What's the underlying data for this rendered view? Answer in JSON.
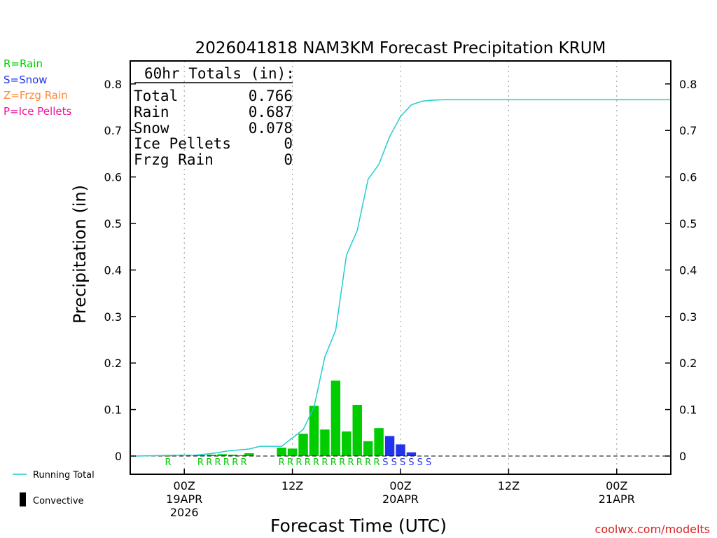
{
  "colors": {
    "rain": "#00cc00",
    "snow": "#2233ee",
    "frzg_rain": "#ff8833",
    "ice_pellets": "#ee1199",
    "running_total": "#22cccc",
    "watermark": "#dd2222"
  },
  "legend": {
    "type_entries": [
      {
        "text": "R=Rain",
        "color_key": "rain"
      },
      {
        "text": "S=Snow",
        "color_key": "snow"
      },
      {
        "text": "Z=Frzg Rain",
        "color_key": "frzg_rain"
      },
      {
        "text": "P=Ice Pellets",
        "color_key": "ice_pellets"
      }
    ],
    "running_total_label": "Running Total",
    "convective_label": "Convective"
  },
  "totals_box": {
    "heading": "60hr Totals (in):",
    "rows": [
      {
        "label": "Total",
        "value": "0.766"
      },
      {
        "label": "Rain",
        "value": "0.687"
      },
      {
        "label": "Snow",
        "value": "0.078"
      },
      {
        "label": "Ice Pellets",
        "value": "0"
      },
      {
        "label": "Frzg Rain",
        "value": "0"
      }
    ]
  },
  "watermark": "coolwx.com/modelts",
  "chart_data": {
    "type": "bar",
    "title": "2026041818 NAM3KM Forecast Precipitation KRUM",
    "xlabel": "Forecast Time (UTC)",
    "ylabel": "Precipitation (in)",
    "ylim": [
      0,
      0.85
    ],
    "xlim_hours_from_00Z_19APR": [
      -5,
      45
    ],
    "y_ticks": [
      "0",
      "0.1",
      "0.2",
      "0.3",
      "0.4",
      "0.5",
      "0.6",
      "0.7",
      "0.8"
    ],
    "x_ticks": [
      {
        "hour": 0,
        "lines": [
          "00Z",
          "19APR",
          "2026"
        ]
      },
      {
        "hour": 10,
        "lines": [
          "12Z"
        ]
      },
      {
        "hour": 20,
        "lines": [
          "00Z",
          "20APR"
        ]
      },
      {
        "hour": 30,
        "lines": [
          "12Z"
        ]
      },
      {
        "hour": 40,
        "lines": [
          "00Z",
          "21APR"
        ]
      }
    ],
    "grid": "vertical dotted at x ticks",
    "bar_series": {
      "name": "Hourly precipitation",
      "bars": [
        {
          "hour": -1.5,
          "value": 0.001,
          "type": "R"
        },
        {
          "hour": 1.5,
          "value": 0.002,
          "type": "R"
        },
        {
          "hour": 2.5,
          "value": 0.003,
          "type": "R"
        },
        {
          "hour": 3.5,
          "value": 0.004,
          "type": "R"
        },
        {
          "hour": 4.5,
          "value": 0.003,
          "type": "R"
        },
        {
          "hour": 5.5,
          "value": 0.002,
          "type": "R"
        },
        {
          "hour": 6.0,
          "value": 0.006,
          "type": "R"
        },
        {
          "hour": 9.0,
          "value": 0.018,
          "type": "R"
        },
        {
          "hour": 10.0,
          "value": 0.016,
          "type": "R"
        },
        {
          "hour": 11.0,
          "value": 0.048,
          "type": "R"
        },
        {
          "hour": 12.0,
          "value": 0.108,
          "type": "R"
        },
        {
          "hour": 13.0,
          "value": 0.057,
          "type": "R"
        },
        {
          "hour": 14.0,
          "value": 0.162,
          "type": "R"
        },
        {
          "hour": 15.0,
          "value": 0.053,
          "type": "R"
        },
        {
          "hour": 16.0,
          "value": 0.11,
          "type": "R"
        },
        {
          "hour": 17.0,
          "value": 0.032,
          "type": "R"
        },
        {
          "hour": 18.0,
          "value": 0.06,
          "type": "R"
        },
        {
          "hour": 19.0,
          "value": 0.043,
          "type": "S"
        },
        {
          "hour": 20.0,
          "value": 0.025,
          "type": "S"
        },
        {
          "hour": 21.0,
          "value": 0.008,
          "type": "S"
        }
      ]
    },
    "type_markers": [
      {
        "hour": -1.5,
        "type": "R"
      },
      {
        "hour": 1.5,
        "type": "R"
      },
      {
        "hour": 2.3,
        "type": "R"
      },
      {
        "hour": 3.1,
        "type": "R"
      },
      {
        "hour": 3.9,
        "type": "R"
      },
      {
        "hour": 4.7,
        "type": "R"
      },
      {
        "hour": 5.5,
        "type": "R"
      },
      {
        "hour": 9.0,
        "type": "R"
      },
      {
        "hour": 9.8,
        "type": "R"
      },
      {
        "hour": 10.6,
        "type": "R"
      },
      {
        "hour": 11.4,
        "type": "R"
      },
      {
        "hour": 12.2,
        "type": "R"
      },
      {
        "hour": 13.0,
        "type": "R"
      },
      {
        "hour": 13.8,
        "type": "R"
      },
      {
        "hour": 14.6,
        "type": "R"
      },
      {
        "hour": 15.4,
        "type": "R"
      },
      {
        "hour": 16.2,
        "type": "R"
      },
      {
        "hour": 17.0,
        "type": "R"
      },
      {
        "hour": 17.8,
        "type": "R"
      },
      {
        "hour": 18.6,
        "type": "S"
      },
      {
        "hour": 19.4,
        "type": "S"
      },
      {
        "hour": 20.2,
        "type": "S"
      },
      {
        "hour": 21.0,
        "type": "S"
      },
      {
        "hour": 21.8,
        "type": "S"
      },
      {
        "hour": 22.6,
        "type": "S"
      }
    ],
    "line_series": {
      "name": "Running Total",
      "points": [
        [
          -4.5,
          0.0
        ],
        [
          -2.0,
          0.001
        ],
        [
          0.0,
          0.002
        ],
        [
          1.0,
          0.002
        ],
        [
          2.0,
          0.004
        ],
        [
          3.0,
          0.007
        ],
        [
          4.0,
          0.011
        ],
        [
          5.0,
          0.013
        ],
        [
          6.0,
          0.015
        ],
        [
          7.0,
          0.021
        ],
        [
          8.0,
          0.021
        ],
        [
          9.0,
          0.021
        ],
        [
          10.0,
          0.039
        ],
        [
          11.0,
          0.057
        ],
        [
          12.0,
          0.105
        ],
        [
          13.0,
          0.213
        ],
        [
          14.0,
          0.27
        ],
        [
          15.0,
          0.432
        ],
        [
          16.0,
          0.485
        ],
        [
          17.0,
          0.595
        ],
        [
          18.0,
          0.627
        ],
        [
          19.0,
          0.687
        ],
        [
          20.0,
          0.73
        ],
        [
          21.0,
          0.755
        ],
        [
          22.0,
          0.763
        ],
        [
          23.0,
          0.765
        ],
        [
          24.0,
          0.766
        ],
        [
          45.0,
          0.766
        ]
      ]
    }
  }
}
